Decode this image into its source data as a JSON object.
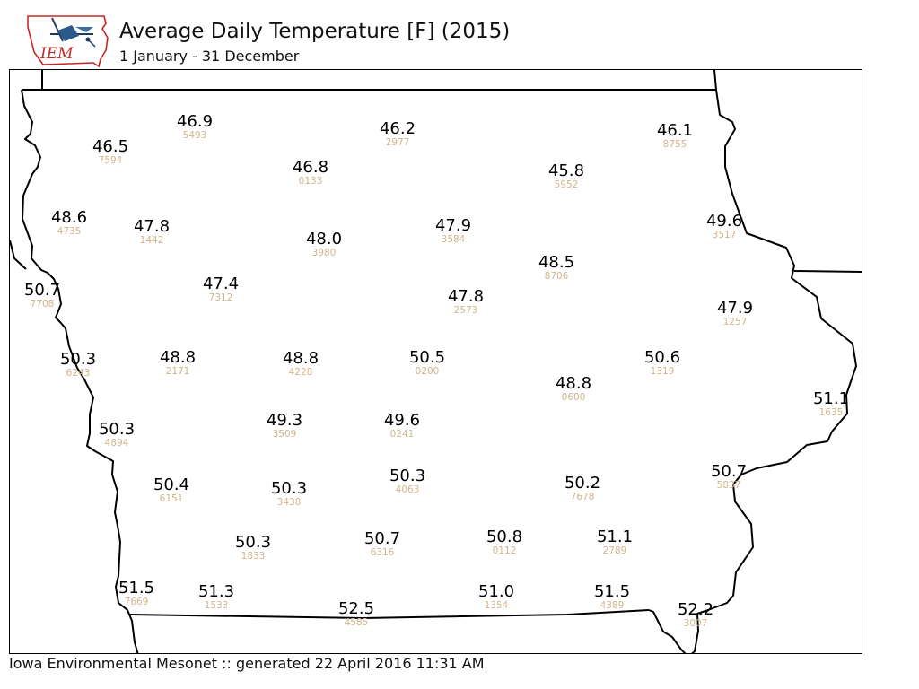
{
  "header": {
    "logo_text": "IEM",
    "title": "Average Daily Temperature [F] (2015)",
    "subtitle": "1 January - 31 December"
  },
  "footer": {
    "text": "Iowa Environmental Mesonet :: generated 22 April 2016 11:31 AM"
  },
  "map": {
    "state": "Iowa",
    "label_color": "#000000",
    "station_id_color": "#d2b48c",
    "boundary_color": "#000000",
    "stations": [
      {
        "value": "46.9",
        "id": "5493"
      },
      {
        "value": "46.2",
        "id": "2977"
      },
      {
        "value": "46.1",
        "id": "8755"
      },
      {
        "value": "46.5",
        "id": "7594"
      },
      {
        "value": "46.8",
        "id": "0133"
      },
      {
        "value": "45.8",
        "id": "5952"
      },
      {
        "value": "48.6",
        "id": "4735"
      },
      {
        "value": "47.8",
        "id": "1442"
      },
      {
        "value": "48.0",
        "id": "3980"
      },
      {
        "value": "47.9",
        "id": "3584"
      },
      {
        "value": "49.6",
        "id": "3517"
      },
      {
        "value": "48.5",
        "id": "8706"
      },
      {
        "value": "50.7",
        "id": "7708"
      },
      {
        "value": "47.4",
        "id": "7312"
      },
      {
        "value": "47.8",
        "id": "2573"
      },
      {
        "value": "47.9",
        "id": "1257"
      },
      {
        "value": "50.3",
        "id": "6243"
      },
      {
        "value": "48.8",
        "id": "2171"
      },
      {
        "value": "48.8",
        "id": "4228"
      },
      {
        "value": "50.5",
        "id": "0200"
      },
      {
        "value": "50.6",
        "id": "1319"
      },
      {
        "value": "48.8",
        "id": "0600"
      },
      {
        "value": "51.1",
        "id": "1635"
      },
      {
        "value": "50.3",
        "id": "4894"
      },
      {
        "value": "49.3",
        "id": "3509"
      },
      {
        "value": "49.6",
        "id": "0241"
      },
      {
        "value": "50.7",
        "id": "5837"
      },
      {
        "value": "50.4",
        "id": "6151"
      },
      {
        "value": "50.3",
        "id": "3438"
      },
      {
        "value": "50.3",
        "id": "4063"
      },
      {
        "value": "50.2",
        "id": "7678"
      },
      {
        "value": "50.3",
        "id": "1833"
      },
      {
        "value": "50.7",
        "id": "6316"
      },
      {
        "value": "50.8",
        "id": "0112"
      },
      {
        "value": "51.1",
        "id": "2789"
      },
      {
        "value": "51.5",
        "id": "7669"
      },
      {
        "value": "51.3",
        "id": "1533"
      },
      {
        "value": "52.5",
        "id": "4585"
      },
      {
        "value": "51.0",
        "id": "1354"
      },
      {
        "value": "51.5",
        "id": "4389"
      },
      {
        "value": "52.2",
        "id": "3007"
      }
    ]
  }
}
